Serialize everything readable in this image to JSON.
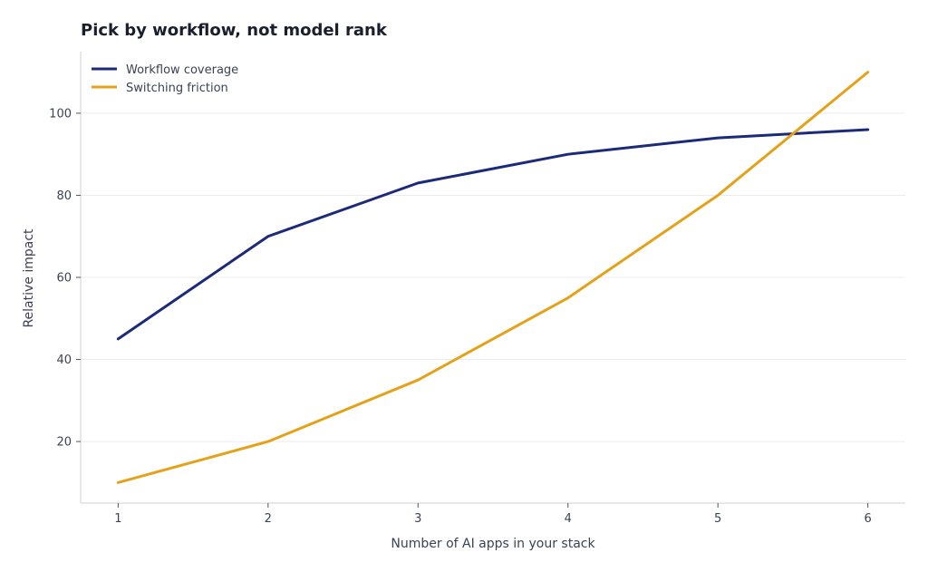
{
  "chart_data": {
    "type": "line",
    "title": "Pick by workflow, not model rank",
    "xlabel": "Number of AI apps in your stack",
    "ylabel": "Relative impact",
    "x": [
      1,
      2,
      3,
      4,
      5,
      6
    ],
    "xticks": [
      "1",
      "2",
      "3",
      "4",
      "5",
      "6"
    ],
    "yticks": [
      "20",
      "40",
      "60",
      "80",
      "100"
    ],
    "xlim": [
      0.75,
      6.25
    ],
    "ylim": [
      5,
      115
    ],
    "grid": "horizontal",
    "legend_position": "top-left",
    "series": [
      {
        "name": "Workflow coverage",
        "color": "#1c2a7a",
        "values": [
          45,
          70,
          83,
          90,
          94,
          96
        ]
      },
      {
        "name": "Switching friction",
        "color": "#e3a21a",
        "values": [
          10,
          20,
          35,
          55,
          80,
          110
        ]
      }
    ]
  }
}
